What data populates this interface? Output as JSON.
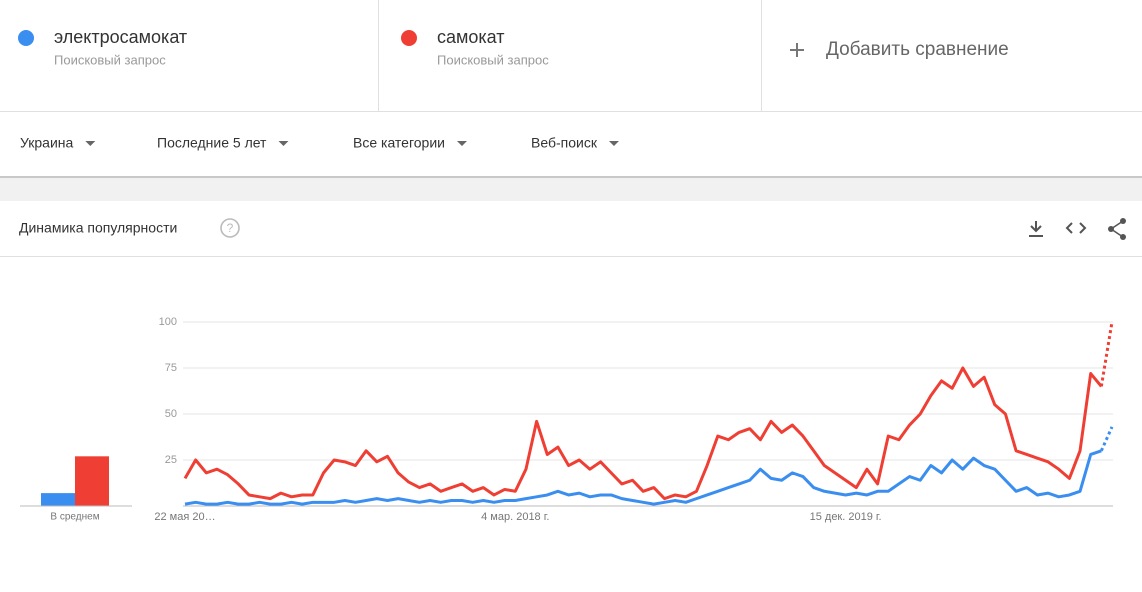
{
  "header": {
    "add_compare": "Добавить сравнение",
    "sublabel": "Поисковый запрос"
  },
  "filters": [
    "Украина",
    "Последние 5 лет",
    "Все категории",
    "Веб-поиск"
  ],
  "panel": {
    "title": "Динамика популярности"
  },
  "chart_data": [
    {
      "type": "line",
      "categories": [
        "22 мая 20…",
        null,
        null,
        null,
        null,
        null,
        null,
        null,
        null,
        null,
        null,
        null,
        null,
        null,
        null,
        null,
        null,
        null,
        null,
        null,
        null,
        null,
        null,
        null,
        null,
        null,
        null,
        null,
        null,
        null,
        null,
        "4 мар. 2018 г.",
        null,
        null,
        null,
        null,
        null,
        null,
        null,
        null,
        null,
        null,
        null,
        null,
        null,
        null,
        null,
        null,
        null,
        null,
        null,
        null,
        null,
        null,
        null,
        null,
        null,
        null,
        null,
        null,
        null,
        null,
        "15 дек. 2019 г.",
        null,
        null,
        null,
        null,
        null,
        null,
        null,
        null,
        null,
        null,
        null,
        null,
        null,
        null,
        null,
        null,
        null,
        null,
        null,
        null,
        null,
        null,
        null,
        null,
        null
      ],
      "series": [
        {
          "name": "электросамокат",
          "color": "#3a8ef0",
          "values": [
            1,
            2,
            1,
            1,
            2,
            1,
            1,
            2,
            1,
            1,
            2,
            1,
            2,
            2,
            2,
            3,
            2,
            3,
            4,
            3,
            4,
            3,
            2,
            3,
            2,
            3,
            3,
            2,
            3,
            2,
            3,
            3,
            4,
            5,
            6,
            8,
            6,
            7,
            5,
            6,
            6,
            4,
            3,
            2,
            1,
            2,
            3,
            2,
            4,
            6,
            8,
            10,
            12,
            14,
            20,
            15,
            14,
            18,
            16,
            10,
            8,
            7,
            6,
            7,
            6,
            8,
            8,
            12,
            16,
            14,
            22,
            18,
            25,
            20,
            26,
            22,
            20,
            14,
            8,
            10,
            6,
            7,
            5,
            6,
            8,
            28,
            30,
            43
          ]
        },
        {
          "name": "самокат",
          "color": "#ef3f34",
          "values": [
            15,
            25,
            18,
            20,
            17,
            12,
            6,
            5,
            4,
            7,
            5,
            6,
            6,
            18,
            25,
            24,
            22,
            30,
            24,
            27,
            18,
            13,
            10,
            12,
            8,
            10,
            12,
            8,
            10,
            6,
            9,
            8,
            20,
            46,
            28,
            32,
            22,
            25,
            20,
            24,
            18,
            12,
            14,
            8,
            10,
            4,
            6,
            5,
            8,
            22,
            38,
            36,
            40,
            42,
            36,
            46,
            40,
            44,
            38,
            30,
            22,
            18,
            14,
            10,
            20,
            12,
            38,
            36,
            44,
            50,
            60,
            68,
            64,
            75,
            65,
            70,
            55,
            50,
            30,
            28,
            26,
            24,
            20,
            15,
            30,
            72,
            65,
            100
          ]
        }
      ],
      "ylim": [
        0,
        100
      ],
      "yticks": [
        25,
        50,
        75,
        100
      ],
      "grid": true
    },
    {
      "type": "bar",
      "category": "В среднем",
      "values": [
        7,
        27
      ],
      "colors": [
        "#3a8ef0",
        "#ef3f34"
      ],
      "ylim": [
        0,
        100
      ]
    }
  ]
}
